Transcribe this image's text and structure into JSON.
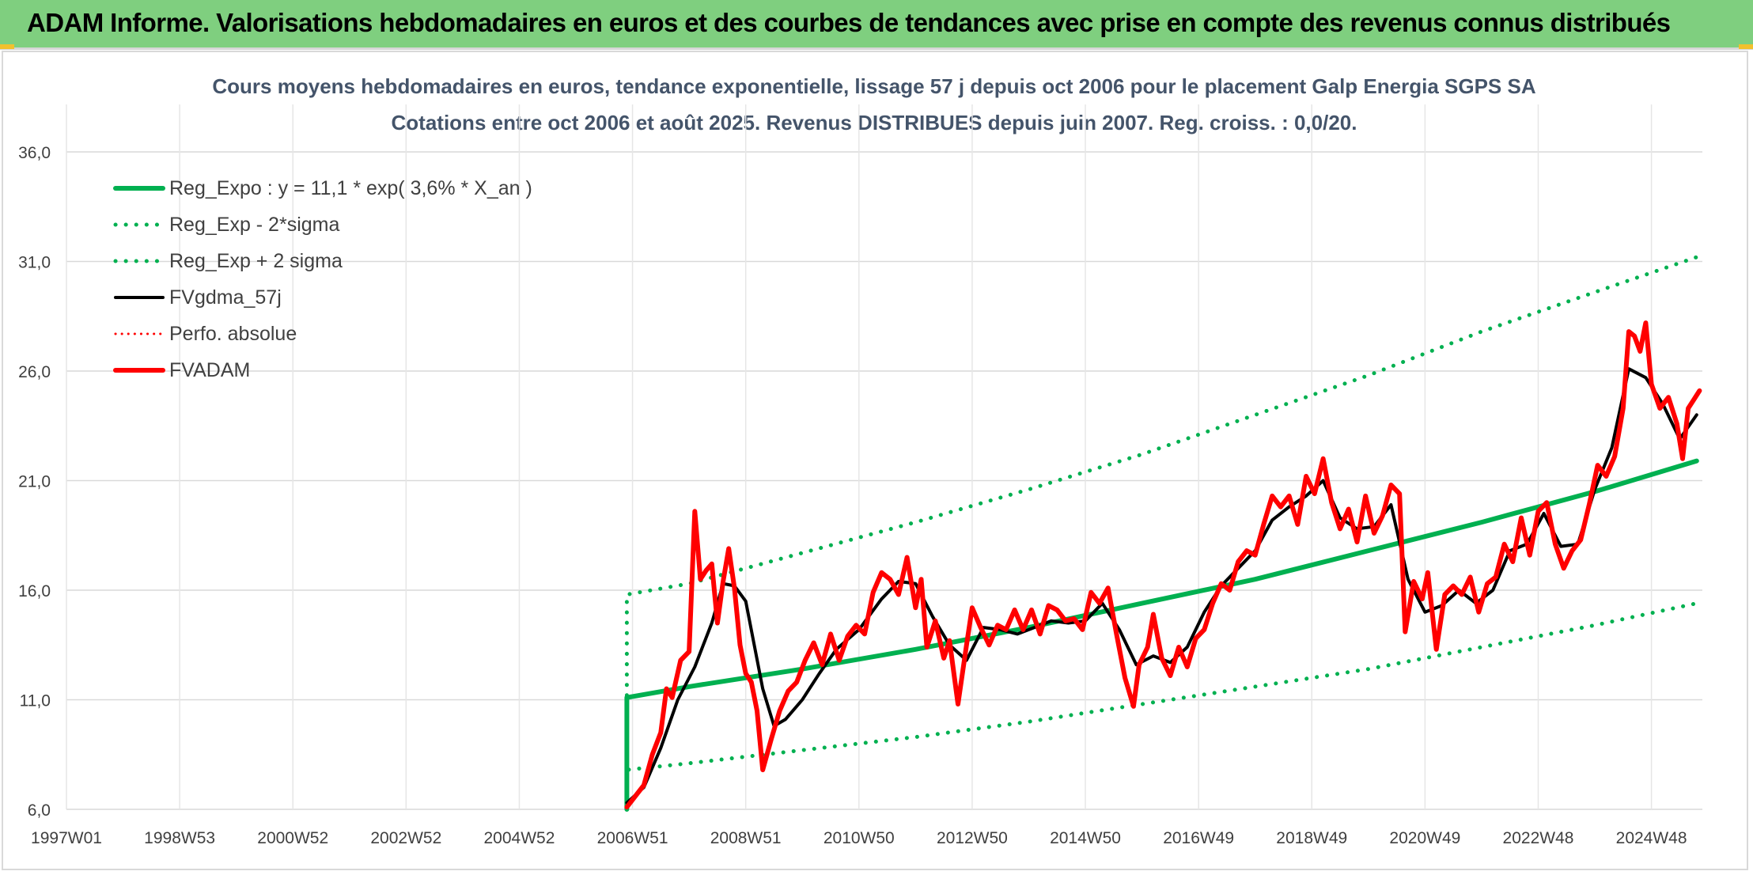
{
  "header": {
    "title": "ADAM Informe. Valorisations hebdomadaires en euros et des courbes de tendances avec prise en compte des revenus connus distribués"
  },
  "chart_data": {
    "type": "line",
    "title": "Cours moyens hebdomadaires en euros, tendance exponentielle, lissage 57 j depuis oct 2006 pour le placement Galp Energia SGPS SA",
    "subtitle": "Cotations entre oct 2006 et août 2025. Revenus DISTRIBUES depuis juin 2007. Reg. croiss. : 0,0/20.",
    "xlabel": "",
    "ylabel": "",
    "ylim": [
      6,
      36
    ],
    "xlim": [
      1997.0,
      2025.9
    ],
    "y_ticks": [
      "6,0",
      "11,0",
      "16,0",
      "21,0",
      "26,0",
      "31,0",
      "36,0"
    ],
    "x_ticks": [
      {
        "label": "1997W01",
        "x": 1997.0
      },
      {
        "label": "1998W53",
        "x": 1999.0
      },
      {
        "label": "2000W52",
        "x": 2001.0
      },
      {
        "label": "2002W52",
        "x": 2003.0
      },
      {
        "label": "2004W52",
        "x": 2005.0
      },
      {
        "label": "2006W51",
        "x": 2007.0
      },
      {
        "label": "2008W51",
        "x": 2009.0
      },
      {
        "label": "2010W50",
        "x": 2011.0
      },
      {
        "label": "2012W50",
        "x": 2013.0
      },
      {
        "label": "2014W50",
        "x": 2015.0
      },
      {
        "label": "2016W49",
        "x": 2017.0
      },
      {
        "label": "2018W49",
        "x": 2019.0
      },
      {
        "label": "2020W49",
        "x": 2021.0
      },
      {
        "label": "2022W48",
        "x": 2023.0
      },
      {
        "label": "2024W48",
        "x": 2025.0
      }
    ],
    "grid": true,
    "legend_position": "top-left",
    "series": [
      {
        "name": "Reg_Expo : y = 11,1 * exp( 3,6% *  X_an )",
        "color": "#00b050",
        "style": "solid-thick",
        "points": [
          [
            2006.9,
            6.0
          ],
          [
            2006.9,
            11.1
          ],
          [
            2008.0,
            11.6
          ],
          [
            2010.0,
            12.4
          ],
          [
            2012.0,
            13.3
          ],
          [
            2014.0,
            14.3
          ],
          [
            2016.0,
            15.4
          ],
          [
            2018.0,
            16.5
          ],
          [
            2020.0,
            17.8
          ],
          [
            2022.0,
            19.1
          ],
          [
            2024.0,
            20.5
          ],
          [
            2025.8,
            21.9
          ]
        ]
      },
      {
        "name": "Reg_Exp - 2*sigma",
        "color": "#00b050",
        "style": "dotted",
        "points": [
          [
            2006.9,
            6.0
          ],
          [
            2006.9,
            7.8
          ],
          [
            2008.0,
            8.1
          ],
          [
            2010.0,
            8.7
          ],
          [
            2012.0,
            9.3
          ],
          [
            2014.0,
            10.0
          ],
          [
            2016.0,
            10.8
          ],
          [
            2018.0,
            11.6
          ],
          [
            2020.0,
            12.4
          ],
          [
            2022.0,
            13.4
          ],
          [
            2024.0,
            14.4
          ],
          [
            2025.8,
            15.4
          ]
        ]
      },
      {
        "name": "Reg_Exp + 2 sigma",
        "color": "#00b050",
        "style": "dotted",
        "points": [
          [
            2006.9,
            6.0
          ],
          [
            2006.9,
            15.8
          ],
          [
            2008.0,
            16.3
          ],
          [
            2010.0,
            17.7
          ],
          [
            2012.0,
            19.1
          ],
          [
            2014.0,
            20.6
          ],
          [
            2016.0,
            22.2
          ],
          [
            2018.0,
            24.0
          ],
          [
            2020.0,
            25.8
          ],
          [
            2022.0,
            27.8
          ],
          [
            2024.0,
            29.6
          ],
          [
            2025.8,
            31.2
          ]
        ]
      },
      {
        "name": "FVgdma_57j",
        "color": "#000000",
        "style": "solid",
        "points": [
          [
            2006.9,
            6.3
          ],
          [
            2007.2,
            7.0
          ],
          [
            2007.5,
            8.8
          ],
          [
            2007.8,
            11.0
          ],
          [
            2008.1,
            12.5
          ],
          [
            2008.4,
            14.5
          ],
          [
            2008.6,
            16.3
          ],
          [
            2008.8,
            16.2
          ],
          [
            2009.0,
            15.5
          ],
          [
            2009.3,
            11.5
          ],
          [
            2009.5,
            9.8
          ],
          [
            2009.7,
            10.1
          ],
          [
            2010.0,
            11.0
          ],
          [
            2010.3,
            12.2
          ],
          [
            2010.6,
            13.3
          ],
          [
            2011.0,
            14.2
          ],
          [
            2011.4,
            15.6
          ],
          [
            2011.7,
            16.4
          ],
          [
            2012.0,
            16.3
          ],
          [
            2012.3,
            14.8
          ],
          [
            2012.6,
            13.5
          ],
          [
            2012.9,
            12.8
          ],
          [
            2013.2,
            14.3
          ],
          [
            2013.5,
            14.2
          ],
          [
            2013.8,
            14.0
          ],
          [
            2014.1,
            14.3
          ],
          [
            2014.4,
            14.6
          ],
          [
            2014.7,
            14.5
          ],
          [
            2015.0,
            14.6
          ],
          [
            2015.3,
            15.4
          ],
          [
            2015.6,
            14.2
          ],
          [
            2015.9,
            12.6
          ],
          [
            2016.2,
            13.0
          ],
          [
            2016.5,
            12.7
          ],
          [
            2016.8,
            13.4
          ],
          [
            2017.1,
            15.0
          ],
          [
            2017.4,
            16.2
          ],
          [
            2017.7,
            17.0
          ],
          [
            2018.0,
            17.8
          ],
          [
            2018.3,
            19.2
          ],
          [
            2018.6,
            19.8
          ],
          [
            2018.9,
            20.3
          ],
          [
            2019.2,
            21.0
          ],
          [
            2019.5,
            19.3
          ],
          [
            2019.8,
            18.8
          ],
          [
            2020.1,
            18.9
          ],
          [
            2020.4,
            19.9
          ],
          [
            2020.7,
            16.5
          ],
          [
            2021.0,
            15.0
          ],
          [
            2021.3,
            15.3
          ],
          [
            2021.6,
            16.0
          ],
          [
            2021.9,
            15.4
          ],
          [
            2022.2,
            16.0
          ],
          [
            2022.5,
            17.8
          ],
          [
            2022.8,
            18.1
          ],
          [
            2023.1,
            19.5
          ],
          [
            2023.4,
            18.0
          ],
          [
            2023.7,
            18.1
          ],
          [
            2024.0,
            20.6
          ],
          [
            2024.3,
            22.5
          ],
          [
            2024.6,
            26.1
          ],
          [
            2024.9,
            25.7
          ],
          [
            2025.2,
            24.5
          ],
          [
            2025.5,
            22.9
          ],
          [
            2025.8,
            24.0
          ]
        ]
      },
      {
        "name": "Perfo. absolue",
        "color": "#ff0000",
        "style": "dotted-thin",
        "points": []
      },
      {
        "name": "FVADAM",
        "color": "#ff0000",
        "style": "solid-thick",
        "points": [
          [
            2006.9,
            6.1
          ],
          [
            2007.05,
            6.6
          ],
          [
            2007.2,
            7.1
          ],
          [
            2007.35,
            8.5
          ],
          [
            2007.5,
            9.5
          ],
          [
            2007.6,
            11.5
          ],
          [
            2007.7,
            11.1
          ],
          [
            2007.85,
            12.8
          ],
          [
            2008.0,
            13.2
          ],
          [
            2008.1,
            19.6
          ],
          [
            2008.2,
            16.5
          ],
          [
            2008.3,
            16.9
          ],
          [
            2008.4,
            17.2
          ],
          [
            2008.5,
            14.5
          ],
          [
            2008.6,
            16.4
          ],
          [
            2008.7,
            17.9
          ],
          [
            2008.8,
            16.1
          ],
          [
            2008.9,
            13.5
          ],
          [
            2009.0,
            12.2
          ],
          [
            2009.1,
            11.8
          ],
          [
            2009.2,
            10.5
          ],
          [
            2009.3,
            7.8
          ],
          [
            2009.45,
            9.2
          ],
          [
            2009.6,
            10.5
          ],
          [
            2009.75,
            11.4
          ],
          [
            2009.9,
            11.8
          ],
          [
            2010.05,
            12.8
          ],
          [
            2010.2,
            13.6
          ],
          [
            2010.35,
            12.6
          ],
          [
            2010.5,
            14.0
          ],
          [
            2010.65,
            12.8
          ],
          [
            2010.8,
            13.9
          ],
          [
            2010.95,
            14.4
          ],
          [
            2011.1,
            14.0
          ],
          [
            2011.25,
            15.9
          ],
          [
            2011.4,
            16.8
          ],
          [
            2011.55,
            16.5
          ],
          [
            2011.7,
            15.8
          ],
          [
            2011.85,
            17.5
          ],
          [
            2012.0,
            15.2
          ],
          [
            2012.1,
            16.5
          ],
          [
            2012.2,
            13.4
          ],
          [
            2012.35,
            14.6
          ],
          [
            2012.5,
            12.9
          ],
          [
            2012.6,
            13.7
          ],
          [
            2012.75,
            10.8
          ],
          [
            2012.9,
            13.5
          ],
          [
            2013.0,
            15.2
          ],
          [
            2013.15,
            14.3
          ],
          [
            2013.3,
            13.5
          ],
          [
            2013.45,
            14.4
          ],
          [
            2013.6,
            14.2
          ],
          [
            2013.75,
            15.1
          ],
          [
            2013.9,
            14.2
          ],
          [
            2014.05,
            15.1
          ],
          [
            2014.2,
            14.0
          ],
          [
            2014.35,
            15.3
          ],
          [
            2014.5,
            15.1
          ],
          [
            2014.65,
            14.6
          ],
          [
            2014.8,
            14.7
          ],
          [
            2014.95,
            14.2
          ],
          [
            2015.1,
            15.9
          ],
          [
            2015.25,
            15.4
          ],
          [
            2015.4,
            16.1
          ],
          [
            2015.55,
            14.0
          ],
          [
            2015.7,
            12.0
          ],
          [
            2015.85,
            10.7
          ],
          [
            2015.95,
            12.6
          ],
          [
            2016.1,
            13.4
          ],
          [
            2016.2,
            14.9
          ],
          [
            2016.35,
            12.9
          ],
          [
            2016.5,
            12.1
          ],
          [
            2016.65,
            13.4
          ],
          [
            2016.8,
            12.5
          ],
          [
            2016.95,
            13.8
          ],
          [
            2017.1,
            14.2
          ],
          [
            2017.25,
            15.4
          ],
          [
            2017.4,
            16.3
          ],
          [
            2017.55,
            16.0
          ],
          [
            2017.7,
            17.3
          ],
          [
            2017.85,
            17.8
          ],
          [
            2018.0,
            17.6
          ],
          [
            2018.15,
            19.0
          ],
          [
            2018.3,
            20.3
          ],
          [
            2018.45,
            19.8
          ],
          [
            2018.6,
            20.3
          ],
          [
            2018.75,
            19.0
          ],
          [
            2018.9,
            21.2
          ],
          [
            2019.05,
            20.4
          ],
          [
            2019.2,
            22.0
          ],
          [
            2019.35,
            20.0
          ],
          [
            2019.5,
            18.8
          ],
          [
            2019.65,
            19.7
          ],
          [
            2019.8,
            18.2
          ],
          [
            2019.95,
            20.3
          ],
          [
            2020.1,
            18.6
          ],
          [
            2020.25,
            19.4
          ],
          [
            2020.4,
            20.8
          ],
          [
            2020.55,
            20.4
          ],
          [
            2020.65,
            14.1
          ],
          [
            2020.8,
            16.4
          ],
          [
            2020.95,
            15.6
          ],
          [
            2021.05,
            16.8
          ],
          [
            2021.2,
            13.3
          ],
          [
            2021.35,
            15.8
          ],
          [
            2021.5,
            16.2
          ],
          [
            2021.65,
            15.8
          ],
          [
            2021.8,
            16.6
          ],
          [
            2021.95,
            15.0
          ],
          [
            2022.1,
            16.3
          ],
          [
            2022.25,
            16.6
          ],
          [
            2022.4,
            18.1
          ],
          [
            2022.55,
            17.3
          ],
          [
            2022.7,
            19.3
          ],
          [
            2022.85,
            17.6
          ],
          [
            2023.0,
            19.6
          ],
          [
            2023.15,
            20.0
          ],
          [
            2023.3,
            18.1
          ],
          [
            2023.45,
            17.0
          ],
          [
            2023.6,
            17.8
          ],
          [
            2023.75,
            18.3
          ],
          [
            2023.9,
            19.9
          ],
          [
            2024.05,
            21.7
          ],
          [
            2024.2,
            21.2
          ],
          [
            2024.35,
            22.1
          ],
          [
            2024.5,
            24.3
          ],
          [
            2024.6,
            27.8
          ],
          [
            2024.7,
            27.6
          ],
          [
            2024.8,
            26.9
          ],
          [
            2024.9,
            28.2
          ],
          [
            2025.0,
            25.4
          ],
          [
            2025.15,
            24.3
          ],
          [
            2025.3,
            24.8
          ],
          [
            2025.45,
            23.6
          ],
          [
            2025.55,
            22.0
          ],
          [
            2025.65,
            24.3
          ],
          [
            2025.75,
            24.7
          ],
          [
            2025.85,
            25.1
          ]
        ]
      }
    ]
  }
}
